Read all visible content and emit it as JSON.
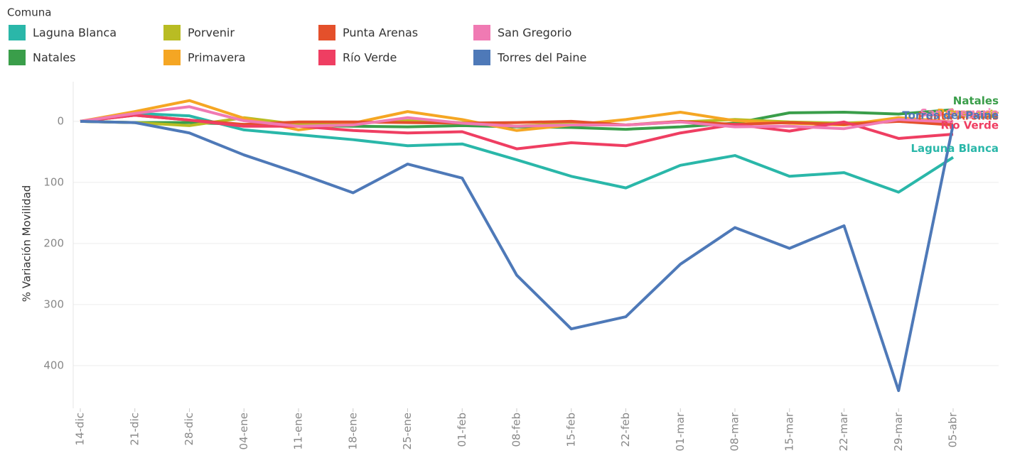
{
  "chart_data": {
    "type": "line",
    "legend_title": "Comuna",
    "y_label": "% Variación Movilidad",
    "categories": [
      "14-dic",
      "21-dic",
      "28-dic",
      "04-ene",
      "11-ene",
      "18-ene",
      "25-ene",
      "01-feb",
      "08-feb",
      "15-feb",
      "22-feb",
      "01-mar",
      "08-mar",
      "15-mar",
      "22-mar",
      "29-mar",
      "05-abr"
    ],
    "ylim": [
      -470,
      65
    ],
    "yticks": [
      0,
      {
        "value": -100,
        "label": "100"
      },
      {
        "value": -200,
        "label": "200"
      },
      {
        "value": -300,
        "label": "300"
      },
      {
        "value": -400,
        "label": "400"
      }
    ],
    "grid": true,
    "legend": "top-left",
    "series": [
      {
        "name": "Laguna Blanca",
        "color": "#2ab7a9",
        "values": [
          0,
          13,
          9,
          -14,
          -22,
          -30,
          -40,
          -37,
          -63,
          -90,
          -109,
          -72,
          -56,
          -90,
          -84,
          -116,
          -59
        ]
      },
      {
        "name": "Natales",
        "color": "#3a9e4a",
        "values": [
          0,
          -2,
          -2,
          -5,
          -7,
          -8,
          -9,
          -7,
          -9,
          -10,
          -13,
          -9,
          -3,
          14,
          15,
          12,
          19
        ]
      },
      {
        "name": "Porvenir",
        "color": "#b9bc23",
        "values": [
          0,
          -2,
          -7,
          6,
          -5,
          -3,
          1,
          -2,
          -8,
          -3,
          -6,
          -1,
          3,
          -1,
          -3,
          1,
          -3
        ]
      },
      {
        "name": "Primavera",
        "color": "#f5a623",
        "values": [
          0,
          16,
          34,
          5,
          -14,
          -3,
          16,
          3,
          -15,
          -6,
          3,
          15,
          1,
          -3,
          -6,
          6,
          -1
        ]
      },
      {
        "name": "Punta Arenas",
        "color": "#e4502b",
        "values": [
          0,
          10,
          2,
          -5,
          -1,
          -1,
          -2,
          -3,
          -2,
          0,
          -6,
          0,
          -5,
          -2,
          -5,
          0,
          -6
        ]
      },
      {
        "name": "Río Verde",
        "color": "#ef3e62",
        "values": [
          0,
          10,
          2,
          -8,
          -8,
          -15,
          -19,
          -17,
          -45,
          -35,
          -40,
          -19,
          -5,
          -16,
          -1,
          -28,
          -21
        ]
      },
      {
        "name": "San Gregorio",
        "color": "#f07ab3",
        "values": [
          0,
          13,
          24,
          1,
          -8,
          -6,
          6,
          -3,
          -8,
          -6,
          -6,
          -1,
          -9,
          -8,
          -12,
          3,
          -1
        ]
      },
      {
        "name": "Torres del Paine",
        "color": "#4e79b8",
        "values": [
          0,
          -2,
          -19,
          -55,
          -85,
          -117,
          -70,
          -93,
          -252,
          -340,
          -320,
          -234,
          -174,
          -208,
          -171,
          -441,
          -5
        ]
      }
    ]
  }
}
